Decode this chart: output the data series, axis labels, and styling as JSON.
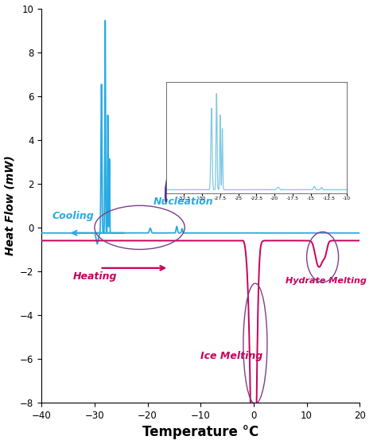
{
  "xlim": [
    -40,
    20
  ],
  "ylim": [
    -8,
    10
  ],
  "xlabel": "Temperature °C",
  "ylabel": "Heat Flow (mW)",
  "cooling_color": "#29ABE2",
  "heating_color": "#C8005A",
  "inset_color": "#7EC8E3",
  "annotation_color": "#5B2C8D",
  "ellipse_color": "#7B3F8C",
  "cooling_label": "Cooling",
  "heating_label": "Heating",
  "nucleation_label": "Nucleation",
  "ice_melting_label": "Ice Melting",
  "hydrate_melting_label": "Hydrate Melting",
  "background_color": "#ffffff",
  "cool_baseline": -0.25,
  "heat_baseline": -0.6,
  "yticks": [
    -8,
    -6,
    -4,
    -2,
    0,
    2,
    4,
    6,
    8,
    10
  ],
  "xticks": [
    -40,
    -30,
    -20,
    -10,
    0,
    10,
    20
  ]
}
